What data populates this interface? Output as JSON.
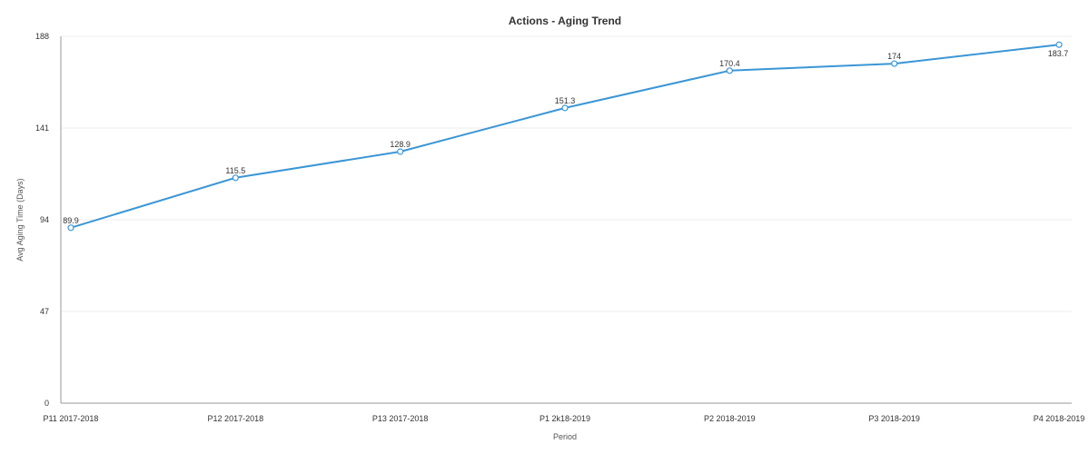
{
  "chart_data": {
    "type": "line",
    "title": "Actions - Aging Trend",
    "xlabel": "Period",
    "ylabel": "Avg Aging Time (Days)",
    "categories": [
      "P11 2017-2018",
      "P12 2017-2018",
      "P13 2017-2018",
      "P1 2k18-2019",
      "P2 2018-2019",
      "P3 2018-2019",
      "P4 2018-2019"
    ],
    "series": [
      {
        "values": [
          89.9,
          115.5,
          128.9,
          151.3,
          170.4,
          174,
          183.7
        ]
      }
    ],
    "data_labels": [
      "89.9",
      "115.5",
      "128.9",
      "151.3",
      "170.4",
      "174",
      "183.7"
    ],
    "yticks": [
      "0",
      "47",
      "94",
      "141",
      "188"
    ],
    "ylim": [
      0,
      188
    ],
    "grid": true,
    "legend": "none",
    "colors": {
      "line": "#3a96d6",
      "grid": "#eeeeee",
      "axis": "#999999"
    }
  }
}
